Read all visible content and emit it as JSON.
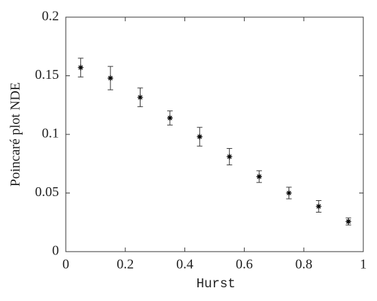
{
  "chart_data": {
    "type": "scatter",
    "xlabel": "Hurst",
    "ylabel": "Poincaré plot NDE",
    "x": [
      0.05,
      0.15,
      0.25,
      0.35,
      0.45,
      0.55,
      0.65,
      0.75,
      0.85,
      0.95
    ],
    "values": [
      0.157,
      0.148,
      0.1316,
      0.114,
      0.098,
      0.081,
      0.064,
      0.05,
      0.0386,
      0.0257
    ],
    "errors": [
      0.008,
      0.01,
      0.008,
      0.006,
      0.008,
      0.007,
      0.005,
      0.005,
      0.005,
      0.003
    ],
    "color": "#000000",
    "xlim": [
      0,
      1
    ],
    "xticks": [
      0,
      0.2,
      0.4,
      0.6,
      0.8,
      1
    ],
    "ylim": [
      0,
      0.2
    ],
    "yticks": [
      0,
      0.05,
      0.1,
      0.15,
      0.2
    ]
  }
}
